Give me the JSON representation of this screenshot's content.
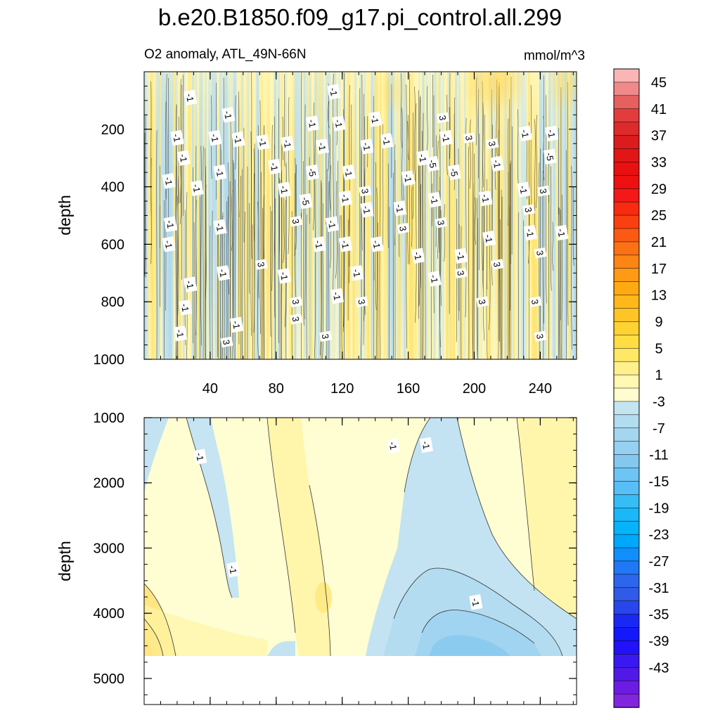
{
  "chart_data": {
    "type": "heatmap",
    "title": "b.e20.B1850.f09_g17.pi_control.all.299",
    "subtitle_left": "O2 anomaly, ATL_49N-66N",
    "subtitle_right": "mmol/m^3",
    "ylabel": "depth",
    "x_range": [
      0,
      262
    ],
    "x_ticks": [
      40,
      80,
      120,
      160,
      200,
      240
    ],
    "panels": [
      {
        "name": "upper",
        "y_range": [
          0,
          1000
        ],
        "y_ticks": [
          200,
          400,
          600,
          800,
          1000
        ],
        "contour_labels": [
          {
            "x": 28,
            "y": 90,
            "text": "-1"
          },
          {
            "x": 51,
            "y": 150,
            "text": "-1"
          },
          {
            "x": 115,
            "y": 70,
            "text": "-1"
          },
          {
            "x": 20,
            "y": 230,
            "text": "-1"
          },
          {
            "x": 43,
            "y": 230,
            "text": "-1"
          },
          {
            "x": 57,
            "y": 235,
            "text": "-1"
          },
          {
            "x": 72,
            "y": 245,
            "text": "-1"
          },
          {
            "x": 87,
            "y": 250,
            "text": "-1"
          },
          {
            "x": 102,
            "y": 180,
            "text": "-1"
          },
          {
            "x": 118,
            "y": 180,
            "text": "-1"
          },
          {
            "x": 140,
            "y": 165,
            "text": "-1"
          },
          {
            "x": 24,
            "y": 300,
            "text": "-1"
          },
          {
            "x": 46,
            "y": 350,
            "text": "-1"
          },
          {
            "x": 79,
            "y": 330,
            "text": "-1"
          },
          {
            "x": 108,
            "y": 260,
            "text": "-1"
          },
          {
            "x": 135,
            "y": 260,
            "text": "-1"
          },
          {
            "x": 147,
            "y": 240,
            "text": "-1"
          },
          {
            "x": 15,
            "y": 380,
            "text": "-1"
          },
          {
            "x": 32,
            "y": 405,
            "text": "-1"
          },
          {
            "x": 85,
            "y": 410,
            "text": "-1"
          },
          {
            "x": 124,
            "y": 350,
            "text": "-1"
          },
          {
            "x": 160,
            "y": 370,
            "text": "-1"
          },
          {
            "x": 169,
            "y": 300,
            "text": "-1"
          },
          {
            "x": 183,
            "y": 230,
            "text": "-1"
          },
          {
            "x": 214,
            "y": 320,
            "text": "-1"
          },
          {
            "x": 231,
            "y": 215,
            "text": "-1"
          },
          {
            "x": 247,
            "y": 215,
            "text": "-1"
          },
          {
            "x": 230,
            "y": 410,
            "text": "-1"
          },
          {
            "x": 122,
            "y": 440,
            "text": "-1"
          },
          {
            "x": 135,
            "y": 480,
            "text": "-1"
          },
          {
            "x": 155,
            "y": 475,
            "text": "-1"
          },
          {
            "x": 176,
            "y": 445,
            "text": "-1"
          },
          {
            "x": 207,
            "y": 440,
            "text": "-1"
          },
          {
            "x": 16,
            "y": 530,
            "text": "-1"
          },
          {
            "x": 46,
            "y": 540,
            "text": "-1"
          },
          {
            "x": 114,
            "y": 530,
            "text": "-1"
          },
          {
            "x": 15,
            "y": 600,
            "text": "-1"
          },
          {
            "x": 106,
            "y": 600,
            "text": "-1"
          },
          {
            "x": 122,
            "y": 600,
            "text": "-1"
          },
          {
            "x": 141,
            "y": 600,
            "text": "-1"
          },
          {
            "x": 166,
            "y": 640,
            "text": "-1"
          },
          {
            "x": 192,
            "y": 640,
            "text": "-1"
          },
          {
            "x": 209,
            "y": 580,
            "text": "-1"
          },
          {
            "x": 234,
            "y": 560,
            "text": "-1"
          },
          {
            "x": 253,
            "y": 560,
            "text": "-1"
          },
          {
            "x": 48,
            "y": 700,
            "text": "-1"
          },
          {
            "x": 85,
            "y": 710,
            "text": "-1"
          },
          {
            "x": 129,
            "y": 700,
            "text": "-1"
          },
          {
            "x": 176,
            "y": 720,
            "text": "-1"
          },
          {
            "x": 28,
            "y": 740,
            "text": "-1"
          },
          {
            "x": 117,
            "y": 780,
            "text": "-1"
          },
          {
            "x": 25,
            "y": 820,
            "text": "-1"
          },
          {
            "x": 56,
            "y": 880,
            "text": "-1"
          },
          {
            "x": 22,
            "y": 910,
            "text": "-1"
          },
          {
            "x": 102,
            "y": 350,
            "text": "-5"
          },
          {
            "x": 98,
            "y": 450,
            "text": "-5"
          },
          {
            "x": 175,
            "y": 320,
            "text": "-5"
          },
          {
            "x": 188,
            "y": 350,
            "text": "-5"
          },
          {
            "x": 246,
            "y": 295,
            "text": "-5"
          },
          {
            "x": 181,
            "y": 160,
            "text": "3"
          },
          {
            "x": 197,
            "y": 230,
            "text": "3"
          },
          {
            "x": 211,
            "y": 250,
            "text": "3"
          },
          {
            "x": 134,
            "y": 415,
            "text": "3"
          },
          {
            "x": 242,
            "y": 415,
            "text": "3"
          },
          {
            "x": 233,
            "y": 480,
            "text": "3"
          },
          {
            "x": 92,
            "y": 520,
            "text": "3"
          },
          {
            "x": 157,
            "y": 545,
            "text": "3"
          },
          {
            "x": 180,
            "y": 525,
            "text": "3"
          },
          {
            "x": 71,
            "y": 670,
            "text": "3"
          },
          {
            "x": 192,
            "y": 700,
            "text": "3"
          },
          {
            "x": 214,
            "y": 670,
            "text": "3"
          },
          {
            "x": 240,
            "y": 630,
            "text": "3"
          },
          {
            "x": 92,
            "y": 800,
            "text": "3"
          },
          {
            "x": 132,
            "y": 800,
            "text": "3"
          },
          {
            "x": 205,
            "y": 800,
            "text": "3"
          },
          {
            "x": 237,
            "y": 800,
            "text": "3"
          },
          {
            "x": 92,
            "y": 860,
            "text": "3"
          },
          {
            "x": 240,
            "y": 920,
            "text": "3"
          },
          {
            "x": 110,
            "y": 920,
            "text": "3"
          },
          {
            "x": 50,
            "y": 940,
            "text": "3"
          }
        ]
      },
      {
        "name": "lower",
        "y_range": [
          1000,
          5400
        ],
        "y_ticks": [
          1000,
          2000,
          3000,
          4000,
          5000
        ],
        "data_bottom": 4650,
        "contour_labels": [
          {
            "x": 34,
            "y": 1600,
            "text": "-1"
          },
          {
            "x": 151,
            "y": 1430,
            "text": "-1"
          },
          {
            "x": 171,
            "y": 1420,
            "text": "-1"
          },
          {
            "x": 54,
            "y": 3330,
            "text": "-1"
          },
          {
            "x": 201,
            "y": 3830,
            "text": "-1"
          }
        ]
      }
    ],
    "colorbar": {
      "labels": [
        "45",
        "41",
        "37",
        "33",
        "29",
        "25",
        "21",
        "17",
        "13",
        "9",
        "5",
        "1",
        "-3",
        "-7",
        "-11",
        "-15",
        "-19",
        "-23",
        "-27",
        "-31",
        "-35",
        "-39",
        "-43"
      ],
      "colors": [
        "#fbb5b5",
        "#f08a8a",
        "#e66060",
        "#e23c3c",
        "#de2a2a",
        "#dc1c1c",
        "#e21616",
        "#e81010",
        "#ee1010",
        "#f41818",
        "#f82a10",
        "#fa4010",
        "#fb5a12",
        "#fc7114",
        "#fd8516",
        "#fe9a14",
        "#ffaa10",
        "#ffb81a",
        "#ffc526",
        "#ffd232",
        "#ffde44",
        "#ffe866",
        "#fff08c",
        "#fff7b2",
        "#fffcd0",
        "#c4e4f2",
        "#b2dcf0",
        "#a4d6f0",
        "#96d0f0",
        "#84c8f0",
        "#6ec4f4",
        "#58bef6",
        "#38bcf6",
        "#1ab8f8",
        "#06b4fa",
        "#00a8fb",
        "#108efa",
        "#2078f4",
        "#2c66ec",
        "#305ae8",
        "#2846ec",
        "#1a28f4",
        "#1418fa",
        "#2212f8",
        "#3a18f0",
        "#5218e8",
        "#6c1ce2",
        "#8226de"
      ]
    }
  }
}
